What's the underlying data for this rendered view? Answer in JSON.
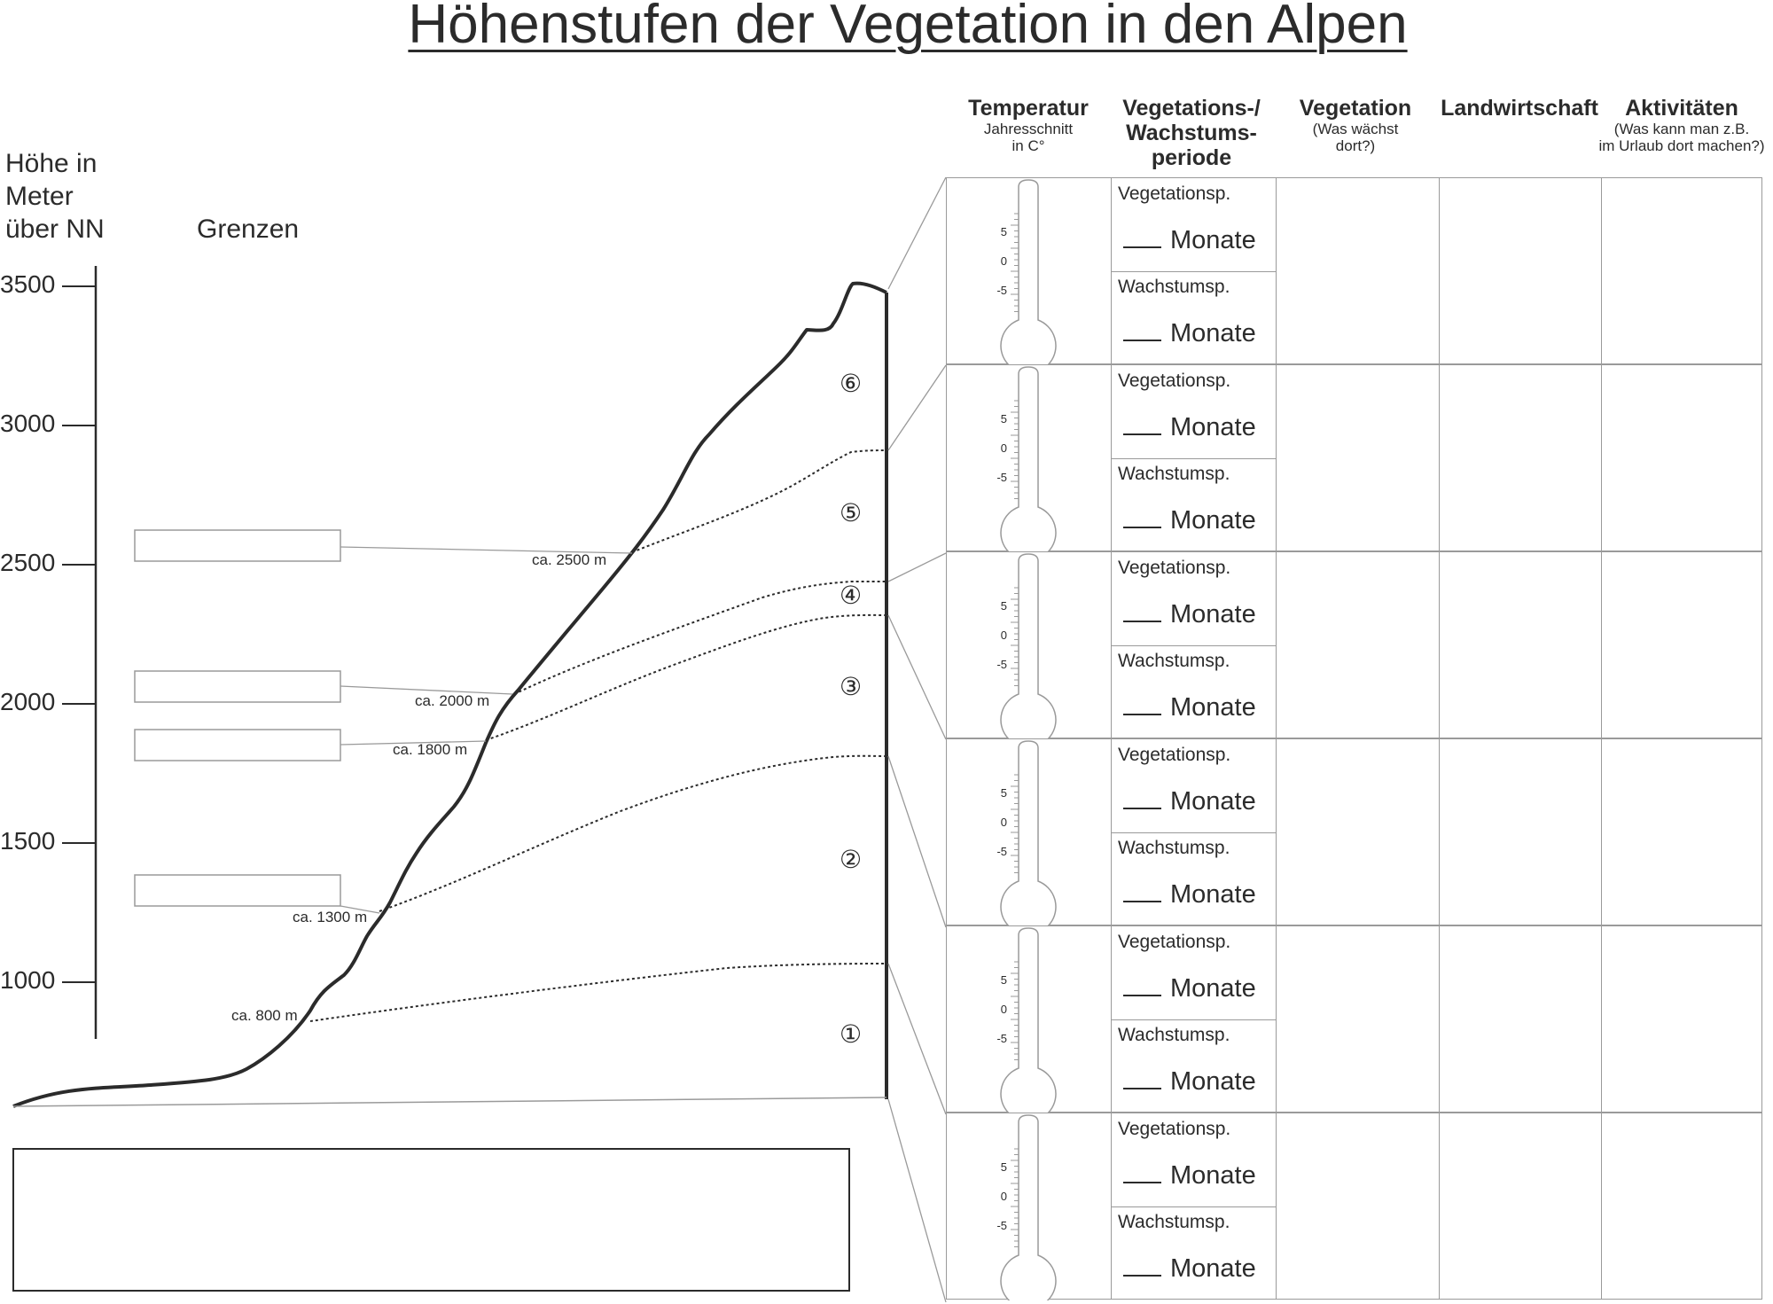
{
  "title": "Höhenstufen der Vegetation in den Alpen",
  "y_axis": {
    "label_lines": [
      "Höhe in",
      "Meter",
      "über NN"
    ],
    "ticks": [
      "3500",
      "3000",
      "2500",
      "2000",
      "1500",
      "1000"
    ]
  },
  "grenzen_label": "Grenzen",
  "boundaries": [
    "ca. 2500 m",
    "ca. 2000 m",
    "ca. 1800 m",
    "ca. 1300 m",
    "ca. 800 m"
  ],
  "zones": [
    "⑥",
    "⑤",
    "④",
    "③",
    "②",
    "①"
  ],
  "columns": [
    {
      "title": "Temperatur",
      "sub": "Jahresschnitt\nin C°"
    },
    {
      "title": "Vegetations-/\nWachstums-\nperiode",
      "sub": ""
    },
    {
      "title": "Vegetation",
      "sub": "(Was wächst\ndort?)"
    },
    {
      "title": "Landwirtschaft",
      "sub": ""
    },
    {
      "title": "Aktivitäten",
      "sub": "(Was kann man z.B.\nim Urlaub dort machen?)"
    }
  ],
  "thermometer_ticks": [
    "5",
    "0",
    "-5"
  ],
  "row_cells": {
    "vegetation_label": "Vegetationsp.",
    "growth_label": "Wachstumsp.",
    "months_label": "Monate"
  },
  "row_count": 6
}
